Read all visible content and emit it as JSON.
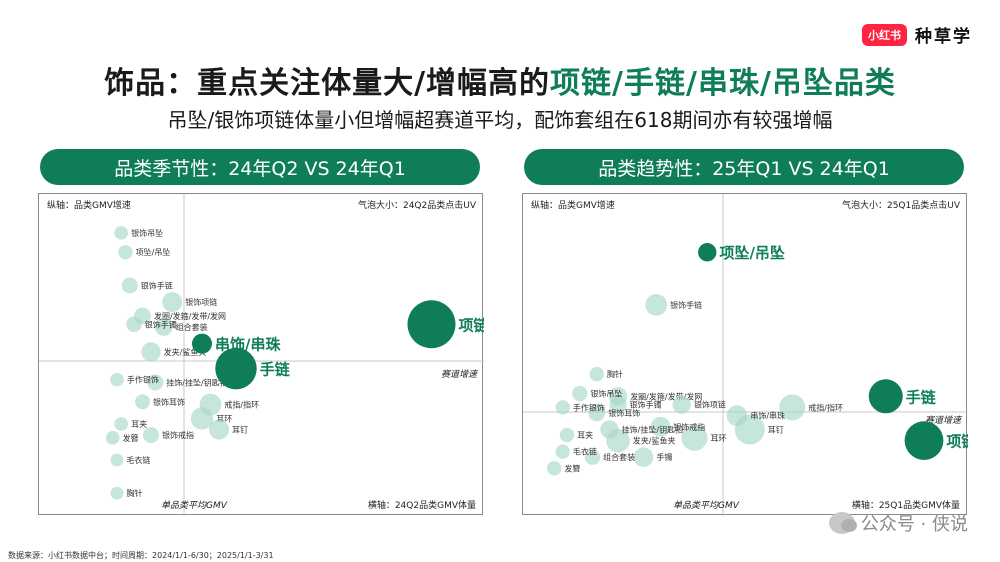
{
  "brand": {
    "badge": "小红书",
    "name": "种草学"
  },
  "header": {
    "title_prefix": "饰品：重点关注体量大/增幅高的",
    "title_highlight": "项链/手链/串珠/吊坠品类",
    "subtitle": "吊坠/银饰项链体量小但增幅超赛道平均，配饰套组在618期间亦有较强增幅"
  },
  "colors": {
    "accent": "#0f7d5a",
    "bubble_light": "#a8d8c4",
    "brand_red": "#ff2442"
  },
  "footer": "数据来源：小红书数据中台；时间周期：2024/1/1-6/30；2025/1/1-3/31",
  "watermark": "公众号 · 侠说",
  "chart_data": [
    {
      "type": "scatter",
      "header": "品类季节性：24年Q2 VS 24年Q1",
      "y_axis_label": "纵轴：品类GMV增速",
      "x_axis_label": "横轴：24Q2品类GMV体量",
      "size_label": "气泡大小：24Q2品类点击UV",
      "hline_label": "赛道增速",
      "vline_label": "单品类平均GMV",
      "points": [
        {
          "label": "银饰吊坠",
          "x": 0.17,
          "y": 0.95,
          "size": 0.02,
          "highlight": false
        },
        {
          "label": "项坠/吊坠",
          "x": 0.18,
          "y": 0.88,
          "size": 0.025,
          "highlight": false
        },
        {
          "label": "银饰手链",
          "x": 0.19,
          "y": 0.76,
          "size": 0.04,
          "highlight": false
        },
        {
          "label": "银饰项链",
          "x": 0.29,
          "y": 0.7,
          "size": 0.09,
          "highlight": false
        },
        {
          "label": "发圈/发箍/发带/发网",
          "x": 0.22,
          "y": 0.65,
          "size": 0.05,
          "highlight": false
        },
        {
          "label": "银饰手镯",
          "x": 0.2,
          "y": 0.62,
          "size": 0.035,
          "highlight": false
        },
        {
          "label": "组合套装",
          "x": 0.27,
          "y": 0.61,
          "size": 0.06,
          "highlight": false
        },
        {
          "label": "串饰/串珠",
          "x": 0.36,
          "y": 0.55,
          "size": 0.09,
          "highlight": true
        },
        {
          "label": "发夹/鲨鱼夹",
          "x": 0.24,
          "y": 0.52,
          "size": 0.08,
          "highlight": false
        },
        {
          "label": "项链",
          "x": 0.9,
          "y": 0.62,
          "size": 1.0,
          "highlight": true
        },
        {
          "label": "手链",
          "x": 0.44,
          "y": 0.46,
          "size": 0.7,
          "highlight": true
        },
        {
          "label": "手作银饰",
          "x": 0.16,
          "y": 0.42,
          "size": 0.02,
          "highlight": false
        },
        {
          "label": "挂饰/挂坠/钥匙扣",
          "x": 0.25,
          "y": 0.41,
          "size": 0.04,
          "highlight": false
        },
        {
          "label": "银饰耳饰",
          "x": 0.22,
          "y": 0.34,
          "size": 0.03,
          "highlight": false
        },
        {
          "label": "戒指/指环",
          "x": 0.38,
          "y": 0.33,
          "size": 0.12,
          "highlight": false
        },
        {
          "label": "耳环",
          "x": 0.36,
          "y": 0.28,
          "size": 0.13,
          "highlight": false
        },
        {
          "label": "耳夹",
          "x": 0.17,
          "y": 0.26,
          "size": 0.02,
          "highlight": false
        },
        {
          "label": "耳钉",
          "x": 0.4,
          "y": 0.24,
          "size": 0.09,
          "highlight": false
        },
        {
          "label": "发簪",
          "x": 0.15,
          "y": 0.21,
          "size": 0.02,
          "highlight": false
        },
        {
          "label": "银饰戒指",
          "x": 0.24,
          "y": 0.22,
          "size": 0.04,
          "highlight": false
        },
        {
          "label": "毛衣链",
          "x": 0.16,
          "y": 0.13,
          "size": 0.015,
          "highlight": false
        },
        {
          "label": "胸针",
          "x": 0.16,
          "y": 0.01,
          "size": 0.015,
          "highlight": false
        }
      ]
    },
    {
      "type": "scatter",
      "header": "品类趋势性：25年Q1 VS 24年Q1",
      "y_axis_label": "纵轴：品类GMV增速",
      "x_axis_label": "横轴：25Q1品类GMV体量",
      "size_label": "气泡大小：25Q1品类点击UV",
      "hline_label": "赛道增速",
      "vline_label": "单品类平均GMV",
      "points": [
        {
          "label": "项坠/吊坠",
          "x": 0.41,
          "y": 0.88,
          "size": 0.04,
          "highlight": true
        },
        {
          "label": "银饰手链",
          "x": 0.29,
          "y": 0.69,
          "size": 0.07,
          "highlight": false
        },
        {
          "label": "胸针",
          "x": 0.15,
          "y": 0.44,
          "size": 0.015,
          "highlight": false
        },
        {
          "label": "银饰吊坠",
          "x": 0.11,
          "y": 0.37,
          "size": 0.02,
          "highlight": false
        },
        {
          "label": "发圈/发箍/发带/发网",
          "x": 0.2,
          "y": 0.36,
          "size": 0.04,
          "highlight": false
        },
        {
          "label": "手作银饰",
          "x": 0.07,
          "y": 0.32,
          "size": 0.015,
          "highlight": false
        },
        {
          "label": "银饰手镯",
          "x": 0.2,
          "y": 0.33,
          "size": 0.03,
          "highlight": false
        },
        {
          "label": "银饰耳饰",
          "x": 0.15,
          "y": 0.3,
          "size": 0.03,
          "highlight": false
        },
        {
          "label": "银饰项链",
          "x": 0.35,
          "y": 0.33,
          "size": 0.04,
          "highlight": false
        },
        {
          "label": "串饰/串珠",
          "x": 0.48,
          "y": 0.29,
          "size": 0.06,
          "highlight": false
        },
        {
          "label": "戒指/指环",
          "x": 0.61,
          "y": 0.32,
          "size": 0.12,
          "highlight": false
        },
        {
          "label": "手链",
          "x": 0.83,
          "y": 0.36,
          "size": 0.25,
          "highlight": true
        },
        {
          "label": "挂饰/挂坠/钥匙扣",
          "x": 0.18,
          "y": 0.24,
          "size": 0.04,
          "highlight": false
        },
        {
          "label": "银饰戒指",
          "x": 0.3,
          "y": 0.25,
          "size": 0.05,
          "highlight": false
        },
        {
          "label": "耳钉",
          "x": 0.51,
          "y": 0.24,
          "size": 0.18,
          "highlight": false
        },
        {
          "label": "耳夹",
          "x": 0.08,
          "y": 0.22,
          "size": 0.015,
          "highlight": false
        },
        {
          "label": "发夹/鲨鱼夹",
          "x": 0.2,
          "y": 0.2,
          "size": 0.09,
          "highlight": false
        },
        {
          "label": "耳环",
          "x": 0.38,
          "y": 0.21,
          "size": 0.12,
          "highlight": false
        },
        {
          "label": "毛衣链",
          "x": 0.07,
          "y": 0.16,
          "size": 0.015,
          "highlight": false
        },
        {
          "label": "组合套装",
          "x": 0.14,
          "y": 0.14,
          "size": 0.02,
          "highlight": false
        },
        {
          "label": "手镯",
          "x": 0.26,
          "y": 0.14,
          "size": 0.05,
          "highlight": false
        },
        {
          "label": "发簪",
          "x": 0.05,
          "y": 0.1,
          "size": 0.015,
          "highlight": false
        },
        {
          "label": "项链",
          "x": 0.92,
          "y": 0.2,
          "size": 0.35,
          "highlight": true
        }
      ]
    }
  ]
}
